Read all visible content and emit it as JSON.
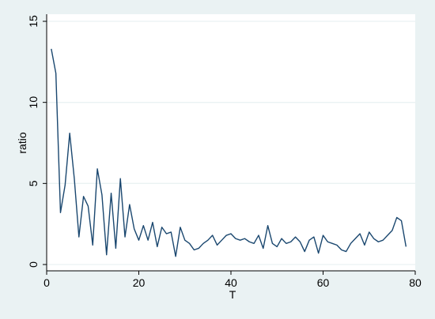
{
  "chart_data": {
    "type": "line",
    "title": "",
    "xlabel": "T",
    "ylabel": "ratio",
    "xlim": [
      0,
      80
    ],
    "ylim": [
      0,
      15
    ],
    "x_ticks": [
      0,
      20,
      40,
      60,
      80
    ],
    "x_tick_labels": [
      "0",
      "20",
      "40",
      "60",
      "80"
    ],
    "y_ticks": [
      0,
      5,
      10,
      15
    ],
    "y_tick_labels": [
      "0",
      "5",
      "10",
      "15"
    ],
    "grid": "horizontal",
    "legend": "none",
    "colors": {
      "outer_background": "#eaf2f3",
      "plot_background": "#ffffff",
      "grid": "#eaf2f3",
      "line": "#1a476f",
      "axis": "#000000"
    },
    "series": [
      {
        "values": [
          [
            1,
            13.3
          ],
          [
            2,
            11.8
          ],
          [
            3,
            3.2
          ],
          [
            4,
            4.9
          ],
          [
            5,
            8.1
          ],
          [
            6,
            5.3
          ],
          [
            7,
            1.7
          ],
          [
            8,
            4.2
          ],
          [
            9,
            3.6
          ],
          [
            10,
            1.2
          ],
          [
            11,
            5.9
          ],
          [
            12,
            4.3
          ],
          [
            13,
            0.6
          ],
          [
            14,
            4.4
          ],
          [
            15,
            1.0
          ],
          [
            16,
            5.3
          ],
          [
            17,
            1.7
          ],
          [
            18,
            3.7
          ],
          [
            19,
            2.2
          ],
          [
            20,
            1.5
          ],
          [
            21,
            2.4
          ],
          [
            22,
            1.5
          ],
          [
            23,
            2.6
          ],
          [
            24,
            1.1
          ],
          [
            25,
            2.3
          ],
          [
            26,
            1.9
          ],
          [
            27,
            2.0
          ],
          [
            28,
            0.5
          ],
          [
            29,
            2.3
          ],
          [
            30,
            1.5
          ],
          [
            31,
            1.3
          ],
          [
            32,
            0.9
          ],
          [
            33,
            1.0
          ],
          [
            34,
            1.3
          ],
          [
            35,
            1.5
          ],
          [
            36,
            1.8
          ],
          [
            37,
            1.2
          ],
          [
            38,
            1.5
          ],
          [
            39,
            1.8
          ],
          [
            40,
            1.9
          ],
          [
            41,
            1.6
          ],
          [
            42,
            1.5
          ],
          [
            43,
            1.6
          ],
          [
            44,
            1.4
          ],
          [
            45,
            1.3
          ],
          [
            46,
            1.8
          ],
          [
            47,
            1.0
          ],
          [
            48,
            2.4
          ],
          [
            49,
            1.3
          ],
          [
            50,
            1.1
          ],
          [
            51,
            1.6
          ],
          [
            52,
            1.3
          ],
          [
            53,
            1.4
          ],
          [
            54,
            1.7
          ],
          [
            55,
            1.4
          ],
          [
            56,
            0.8
          ],
          [
            57,
            1.5
          ],
          [
            58,
            1.7
          ],
          [
            59,
            0.7
          ],
          [
            60,
            1.8
          ],
          [
            61,
            1.4
          ],
          [
            62,
            1.3
          ],
          [
            63,
            1.2
          ],
          [
            64,
            0.9
          ],
          [
            65,
            0.8
          ],
          [
            66,
            1.3
          ],
          [
            67,
            1.6
          ],
          [
            68,
            1.9
          ],
          [
            69,
            1.2
          ],
          [
            70,
            2.0
          ],
          [
            71,
            1.6
          ],
          [
            72,
            1.4
          ],
          [
            73,
            1.5
          ],
          [
            74,
            1.8
          ],
          [
            75,
            2.1
          ],
          [
            76,
            2.9
          ],
          [
            77,
            2.7
          ],
          [
            78,
            1.1
          ]
        ]
      }
    ]
  }
}
